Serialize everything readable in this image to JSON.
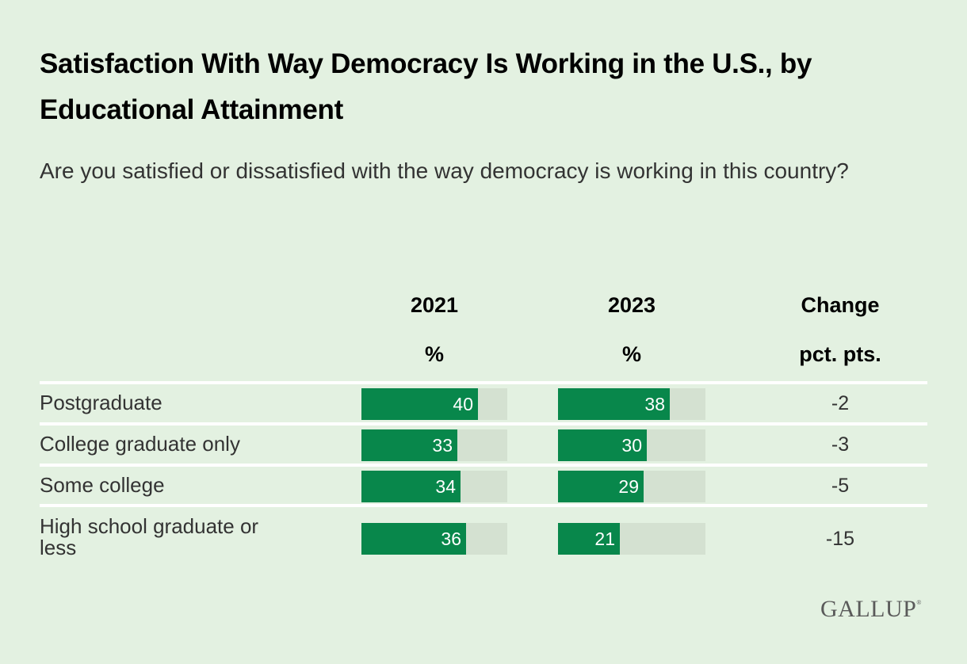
{
  "chart_data": {
    "type": "table",
    "title": "Satisfaction With Way Democracy Is Working in the U.S., by Educational Attainment",
    "subtitle": "Are you satisfied or dissatisfied with the way democracy is working in this country?",
    "columns": [
      {
        "header": "2021",
        "subheader": "%"
      },
      {
        "header": "2023",
        "subheader": "%"
      },
      {
        "header": "Change",
        "subheader": "pct. pts."
      }
    ],
    "bar_scale_max": 50,
    "categories": [
      "Postgraduate",
      "College graduate only",
      "Some college",
      "High school graduate or less"
    ],
    "series": [
      {
        "name": "2021",
        "values": [
          40,
          33,
          34,
          36
        ]
      },
      {
        "name": "2023",
        "values": [
          38,
          30,
          29,
          21
        ]
      }
    ],
    "change": [
      "-2",
      "-3",
      "-5",
      "-15"
    ],
    "colors": {
      "bar": "#08874b",
      "track": "#d4e1d1",
      "background": "#e3f1e1"
    }
  },
  "labels": {
    "row_labels": [
      "Postgraduate",
      "College graduate only",
      "Some college",
      "High school graduate or\nless"
    ]
  },
  "logo": {
    "text": "GALLUP",
    "mark": "®"
  }
}
